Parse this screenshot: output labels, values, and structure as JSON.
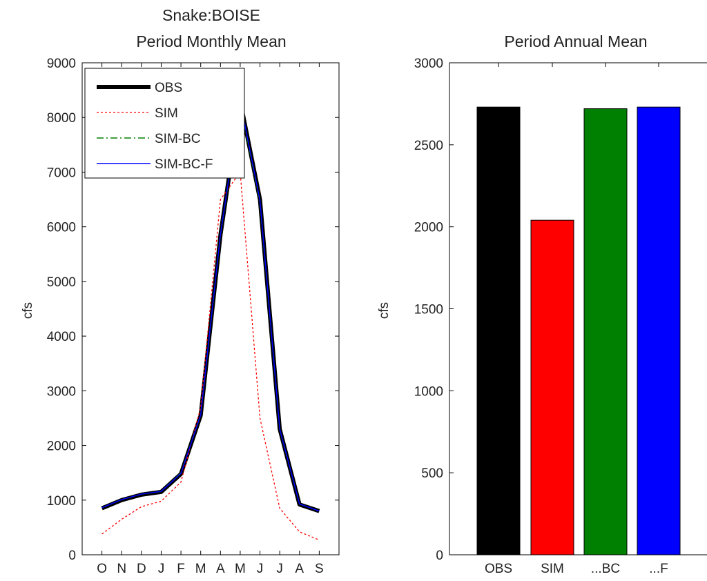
{
  "chart_data": [
    {
      "type": "line",
      "title": "Snake:BOISE",
      "subtitle": "Period Monthly Mean",
      "xlabel": "",
      "ylabel": "cfs",
      "categories": [
        "O",
        "N",
        "D",
        "J",
        "F",
        "M",
        "A",
        "M",
        "J",
        "J",
        "A",
        "S"
      ],
      "ylim": [
        0,
        9000
      ],
      "yticks": [
        0,
        1000,
        2000,
        3000,
        4000,
        5000,
        6000,
        7000,
        8000,
        9000
      ],
      "grid": false,
      "legend": "top-left",
      "series": [
        {
          "name": "OBS",
          "color": "#000000",
          "style": "solid-thick",
          "values": [
            850,
            1000,
            1100,
            1150,
            1480,
            2550,
            5850,
            8300,
            6500,
            2300,
            920,
            800
          ]
        },
        {
          "name": "SIM",
          "color": "#ff0000",
          "style": "dotted",
          "values": [
            380,
            650,
            880,
            980,
            1330,
            2700,
            6500,
            7000,
            2500,
            850,
            420,
            270
          ]
        },
        {
          "name": "SIM-BC",
          "color": "#008000",
          "style": "dash-dot",
          "values": [
            860,
            1010,
            1110,
            1160,
            1500,
            2560,
            5850,
            8250,
            6450,
            2290,
            930,
            800
          ]
        },
        {
          "name": "SIM-BC-F",
          "color": "#0000ff",
          "style": "solid",
          "values": [
            860,
            1010,
            1110,
            1160,
            1490,
            2560,
            5860,
            8290,
            6480,
            2300,
            930,
            800
          ]
        }
      ]
    },
    {
      "type": "bar",
      "title": "Period Annual Mean",
      "xlabel": "",
      "ylabel": "cfs",
      "categories": [
        "OBS",
        "SIM",
        "...BC",
        "...F"
      ],
      "values": [
        2730,
        2040,
        2720,
        2730
      ],
      "colors": [
        "#000000",
        "#ff0000",
        "#008000",
        "#0000ff"
      ],
      "ylim": [
        0,
        3000
      ],
      "yticks": [
        0,
        500,
        1000,
        1500,
        2000,
        2500,
        3000
      ],
      "grid": false
    }
  ]
}
